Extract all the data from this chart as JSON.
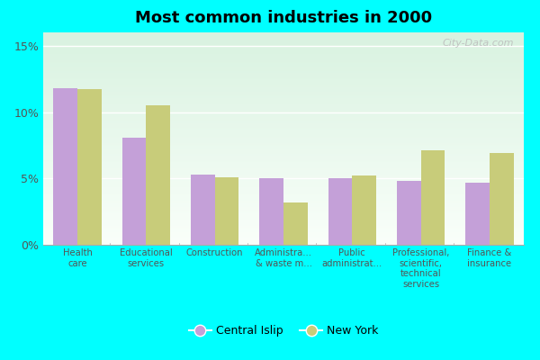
{
  "title": "Most common industries in 2000",
  "categories": [
    "Health\ncare",
    "Educational\nservices",
    "Construction",
    "Administra...\n& waste m...",
    "Public\nadministrat...",
    "Professional,\nscientific,\ntechnical\nservices",
    "Finance &\ninsurance"
  ],
  "central_islip": [
    11.8,
    8.1,
    5.3,
    5.0,
    5.0,
    4.8,
    4.7
  ],
  "new_york": [
    11.7,
    10.5,
    5.1,
    3.2,
    5.2,
    7.1,
    6.9
  ],
  "central_islip_color": "#c4a0d8",
  "new_york_color": "#c8cc7a",
  "background_outer": "#00ffff",
  "ylim": [
    0,
    16
  ],
  "yticks": [
    0,
    5,
    10,
    15
  ],
  "ytick_labels": [
    "0%",
    "5%",
    "10%",
    "15%"
  ],
  "bar_width": 0.35,
  "legend_labels": [
    "Central Islip",
    "New York"
  ],
  "watermark": "City-Data.com"
}
